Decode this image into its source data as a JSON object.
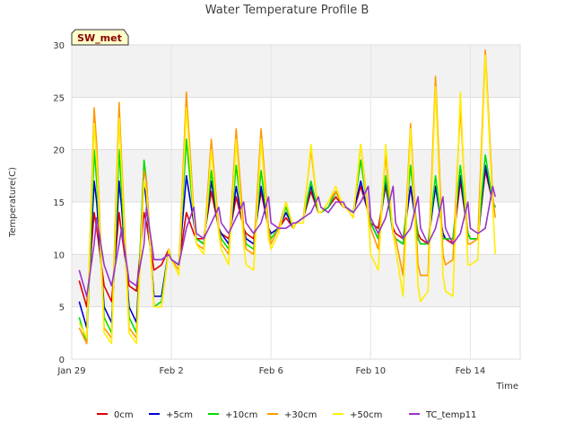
{
  "chart_data": {
    "type": "line",
    "title": "Water Temperature Profile B",
    "xlabel": "Time",
    "ylabel": "Temperature(C)",
    "site_label": "SW_met",
    "x_unit": "days since Jan 29",
    "xlim": [
      0,
      18
    ],
    "ylim": [
      0,
      30
    ],
    "y_ticks": [
      0,
      5,
      10,
      15,
      20,
      25,
      30
    ],
    "x_ticks": [
      {
        "value": 0,
        "label": "Jan 29"
      },
      {
        "value": 4,
        "label": "Feb 2"
      },
      {
        "value": 8,
        "label": "Feb 6"
      },
      {
        "value": 12,
        "label": "Feb 10"
      },
      {
        "value": 16,
        "label": "Feb 14"
      }
    ],
    "grid": true,
    "legend_position": "bottom",
    "x": [
      0.3,
      0.6,
      0.9,
      1.0,
      1.3,
      1.6,
      1.9,
      2.0,
      2.3,
      2.6,
      2.9,
      3.0,
      3.3,
      3.6,
      3.9,
      4.0,
      4.3,
      4.6,
      4.9,
      5.0,
      5.3,
      5.6,
      5.9,
      6.0,
      6.3,
      6.6,
      6.9,
      7.0,
      7.3,
      7.6,
      7.9,
      8.0,
      8.3,
      8.6,
      8.9,
      9.0,
      9.3,
      9.6,
      9.9,
      10.0,
      10.3,
      10.6,
      10.9,
      11.0,
      11.3,
      11.6,
      11.9,
      12.0,
      12.3,
      12.6,
      12.9,
      13.0,
      13.3,
      13.6,
      13.9,
      14.0,
      14.3,
      14.6,
      14.9,
      15.0,
      15.3,
      15.6,
      15.9,
      16.0,
      16.3,
      16.6,
      16.9,
      17.0
    ],
    "series": [
      {
        "name": "0cm",
        "color": "#e00000",
        "values": [
          7.5,
          5.0,
          14.0,
          12.5,
          7.0,
          5.5,
          14.0,
          12.0,
          7.0,
          6.5,
          14.0,
          13.0,
          8.5,
          9.0,
          10.5,
          9.5,
          9.0,
          14.0,
          12.0,
          11.5,
          11.5,
          16.0,
          12.5,
          12.0,
          11.5,
          15.5,
          12.5,
          12.0,
          11.5,
          16.0,
          12.5,
          12.0,
          12.5,
          13.5,
          12.5,
          13.0,
          13.5,
          16.0,
          14.0,
          14.0,
          14.5,
          15.5,
          14.5,
          14.5,
          14.0,
          16.5,
          14.0,
          13.0,
          12.5,
          16.5,
          12.5,
          12.0,
          11.5,
          16.5,
          12.0,
          11.5,
          11.0,
          16.5,
          12.0,
          11.5,
          11.0,
          17.0,
          12.0,
          11.5,
          11.5,
          18.0,
          15.0,
          14.5
        ]
      },
      {
        "name": "+5cm",
        "color": "#0000cc",
        "values": [
          5.5,
          3.0,
          17.0,
          15.0,
          5.0,
          3.5,
          17.0,
          14.5,
          5.0,
          3.5,
          17.0,
          15.0,
          6.0,
          6.0,
          10.5,
          9.5,
          9.0,
          17.5,
          13.0,
          11.5,
          11.0,
          17.0,
          12.5,
          12.0,
          11.0,
          16.5,
          12.5,
          11.5,
          11.0,
          16.5,
          12.5,
          12.0,
          12.5,
          14.0,
          12.5,
          13.0,
          13.5,
          16.5,
          14.0,
          14.0,
          14.5,
          16.0,
          14.5,
          14.5,
          14.0,
          17.0,
          14.0,
          13.0,
          11.5,
          17.0,
          12.0,
          11.5,
          11.0,
          16.5,
          11.5,
          11.0,
          11.0,
          16.5,
          12.0,
          11.5,
          11.5,
          17.5,
          12.0,
          11.5,
          11.5,
          18.5,
          15.0,
          14.5
        ]
      },
      {
        "name": "+10cm",
        "color": "#00dd00",
        "values": [
          4.0,
          1.5,
          20.0,
          17.0,
          4.0,
          2.5,
          20.0,
          16.0,
          4.0,
          2.5,
          19.0,
          17.0,
          5.0,
          5.5,
          10.5,
          9.5,
          9.0,
          21.0,
          13.5,
          11.5,
          11.0,
          18.0,
          12.5,
          11.5,
          10.5,
          18.5,
          12.5,
          11.0,
          10.5,
          18.0,
          12.5,
          11.5,
          12.5,
          14.5,
          12.5,
          13.0,
          13.5,
          17.0,
          14.0,
          14.0,
          14.5,
          16.0,
          14.5,
          14.5,
          14.0,
          19.0,
          14.0,
          13.0,
          11.5,
          17.5,
          12.0,
          11.5,
          11.0,
          18.5,
          11.5,
          11.0,
          11.0,
          17.5,
          11.5,
          11.5,
          11.5,
          18.5,
          12.0,
          11.5,
          11.5,
          19.5,
          15.0,
          14.5
        ]
      },
      {
        "name": "+30cm",
        "color": "#ff9900",
        "values": [
          3.0,
          1.5,
          24.0,
          20.5,
          3.0,
          2.0,
          24.5,
          19.0,
          3.0,
          2.0,
          18.0,
          17.0,
          5.0,
          5.0,
          10.5,
          9.5,
          8.5,
          25.5,
          14.0,
          11.0,
          10.5,
          21.0,
          12.5,
          11.0,
          10.0,
          22.0,
          12.5,
          10.5,
          10.0,
          22.0,
          12.5,
          11.0,
          12.5,
          15.0,
          12.5,
          13.0,
          13.5,
          20.0,
          14.0,
          14.0,
          15.0,
          16.0,
          14.5,
          14.5,
          13.5,
          20.5,
          14.0,
          12.5,
          10.5,
          19.5,
          12.0,
          11.5,
          8.0,
          22.5,
          9.0,
          8.0,
          8.0,
          27.0,
          10.0,
          9.0,
          9.5,
          24.0,
          11.0,
          11.0,
          11.5,
          29.5,
          15.5,
          13.5
        ]
      },
      {
        "name": "+50cm",
        "color": "#ffee00",
        "values": [
          3.5,
          2.0,
          22.5,
          19.0,
          2.5,
          1.5,
          23.0,
          18.0,
          2.5,
          1.5,
          17.0,
          16.0,
          5.0,
          5.0,
          10.5,
          9.5,
          8.0,
          24.0,
          13.5,
          11.0,
          10.0,
          20.0,
          12.0,
          10.5,
          9.0,
          21.0,
          11.0,
          9.0,
          8.5,
          21.0,
          11.5,
          10.5,
          12.0,
          15.0,
          12.5,
          13.0,
          13.0,
          20.5,
          14.0,
          14.0,
          15.0,
          16.5,
          14.5,
          14.5,
          13.5,
          20.5,
          13.5,
          10.0,
          8.5,
          20.5,
          12.0,
          10.5,
          6.0,
          22.0,
          7.0,
          5.5,
          6.5,
          26.0,
          8.0,
          6.5,
          6.0,
          25.5,
          9.0,
          9.0,
          9.5,
          29.0,
          14.5,
          10.0
        ]
      },
      {
        "name": "TC_temp11",
        "color": "#9933cc",
        "values": [
          8.5,
          6.0,
          11.0,
          13.5,
          9.0,
          7.0,
          11.0,
          12.5,
          7.5,
          7.0,
          11.0,
          14.5,
          9.5,
          9.5,
          10.0,
          9.5,
          9.0,
          12.5,
          14.5,
          12.0,
          11.5,
          13.0,
          14.5,
          13.0,
          12.0,
          13.5,
          15.0,
          13.0,
          12.0,
          13.0,
          15.5,
          13.0,
          12.5,
          12.5,
          13.0,
          13.0,
          13.5,
          14.0,
          15.5,
          14.5,
          14.0,
          15.0,
          15.0,
          14.5,
          14.0,
          15.0,
          16.5,
          13.5,
          12.0,
          13.5,
          16.5,
          13.0,
          11.5,
          12.5,
          15.5,
          12.5,
          11.0,
          12.5,
          15.5,
          12.5,
          11.0,
          12.0,
          15.0,
          12.5,
          12.0,
          12.5,
          16.5,
          15.5
        ]
      }
    ]
  }
}
